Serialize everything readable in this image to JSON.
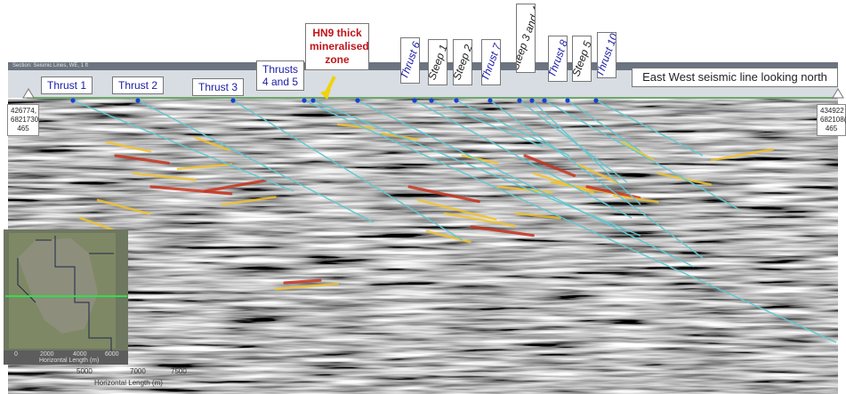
{
  "title": "East West seismic line looking north",
  "toolbar_text": "Section: Seismic Lines, WE, 1 ft",
  "callout": {
    "line1": "HN9 thick",
    "line2": "mineralised",
    "line3": "zone",
    "color": "#c0141a",
    "arrow_color": "#f2d20a"
  },
  "labels": {
    "thrust1": "Thrust 1",
    "thrust2": "Thrust 2",
    "thrust3": "Thrust 3",
    "thrusts45_line1": "Thrusts",
    "thrusts45_line2": "4 and 5",
    "thrust6": "Thrust 6",
    "steep1": "Steep 1",
    "steep2": "Steep 2",
    "thrust7": "Thrust 7",
    "steep34": "Steep 3 and 4",
    "thrust8": "Thrust 8",
    "steep5": "Steep 5",
    "thrust10": "Thrust 10"
  },
  "coords": {
    "left": "426774,\n6821730,\n465",
    "right": "434922\n682108(\n465"
  },
  "inset": {
    "axis_label": "Horizontal Length (m)",
    "ticks": [
      "0",
      "2000",
      "4000",
      "6000"
    ]
  },
  "axis": {
    "label": "Horizontal Length (m)",
    "ticks": [
      "5000",
      "7000",
      "7500"
    ]
  },
  "colors": {
    "label_text": "#1a1aa6",
    "fault_line": "#5fc8d0",
    "fault_dot": "#1a3fd6",
    "reflector_yellow": "#f2c230",
    "reflector_red": "#c8331f",
    "seismic_base": "#8a8a8a"
  }
}
